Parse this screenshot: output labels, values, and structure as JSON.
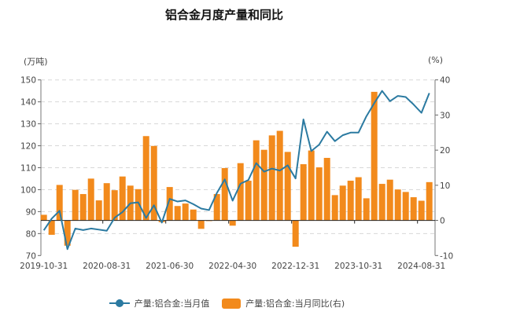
{
  "chart_data": {
    "type": "bar+line",
    "title": "铝合金月度产量和同比",
    "ylabel_left": "(万吨)",
    "ylabel_right": "(%)",
    "ylim_left": [
      70,
      150
    ],
    "ylim_right": [
      -10,
      40
    ],
    "yticks_left": [
      70,
      80,
      90,
      100,
      110,
      120,
      130,
      140,
      150
    ],
    "yticks_right": [
      -10,
      0,
      10,
      20,
      30,
      40
    ],
    "grid": "horizontal dashed",
    "legend_position": "bottom",
    "categories": [
      "2019-10-31",
      "2019-11-30",
      "2019-12-31",
      "2020-03-31",
      "2020-04-30",
      "2020-05-31",
      "2020-06-30",
      "2020-07-31",
      "2020-08-31",
      "2020-09-30",
      "2020-10-31",
      "2020-11-30",
      "2020-12-31",
      "2021-03-31",
      "2021-04-30",
      "2021-05-31",
      "2021-06-30",
      "2021-07-31",
      "2021-08-31",
      "2021-09-30",
      "2021-10-31",
      "2021-11-30",
      "2021-12-31",
      "2022-03-31",
      "2022-04-30",
      "2022-05-31",
      "2022-06-30",
      "2022-07-31",
      "2022-08-31",
      "2022-09-30",
      "2022-10-31",
      "2022-11-30",
      "2022-12-31",
      "2023-03-31",
      "2023-04-30",
      "2023-05-31",
      "2023-06-30",
      "2023-07-31",
      "2023-08-31",
      "2023-09-30",
      "2023-10-31",
      "2023-11-30",
      "2023-12-31",
      "2024-03-31",
      "2024-04-30",
      "2024-05-31",
      "2024-06-30",
      "2024-07-31",
      "2024-08-31",
      "2024-09-30"
    ],
    "x_tick_labels": [
      "2019-10-31",
      "2020-08-31",
      "2021-06-30",
      "2022-04-30",
      "2022-12-31",
      "2023-10-31",
      "2024-08-31"
    ],
    "series": [
      {
        "name": "产量:铝合金:当月值",
        "type": "line",
        "axis": "left",
        "color": "#2b7aa1",
        "values": [
          81.5,
          86.8,
          90.4,
          72.9,
          82.3,
          81.6,
          82.3,
          81.8,
          81.3,
          87.2,
          89.8,
          93.8,
          94.2,
          87.1,
          92.9,
          85.0,
          95.8,
          94.6,
          95.1,
          93.4,
          91.4,
          90.7,
          98.5,
          104.7,
          95.0,
          102.7,
          104.4,
          112.1,
          108.2,
          109.6,
          108.7,
          111.1,
          105.1,
          132.0,
          117.6,
          120.5,
          126.4,
          122.1,
          124.8,
          126.0,
          126.0,
          133.4,
          139.4,
          145.0,
          140.3,
          142.7,
          142.2,
          138.8,
          135.0,
          144.0
        ]
      },
      {
        "name": "产量:铝合金:当月同比(右)",
        "type": "bar",
        "axis": "right",
        "color": "#f28a1c",
        "values": [
          1.6,
          -4.1,
          10.1,
          -7.2,
          8.7,
          7.5,
          11.9,
          5.7,
          10.6,
          8.6,
          12.5,
          9.9,
          8.9,
          24.0,
          21.2,
          -0.5,
          9.5,
          4.1,
          4.8,
          3.1,
          -2.4,
          -0.2,
          7.5,
          14.9,
          -1.5,
          16.3,
          11.3,
          22.8,
          20.1,
          24.2,
          25.5,
          19.5,
          -7.5,
          16.0,
          19.9,
          15.1,
          17.8,
          7.2,
          9.9,
          11.3,
          12.3,
          6.3,
          36.6,
          10.4,
          11.6,
          8.8,
          8.1,
          6.6,
          5.6,
          10.9
        ]
      }
    ]
  }
}
